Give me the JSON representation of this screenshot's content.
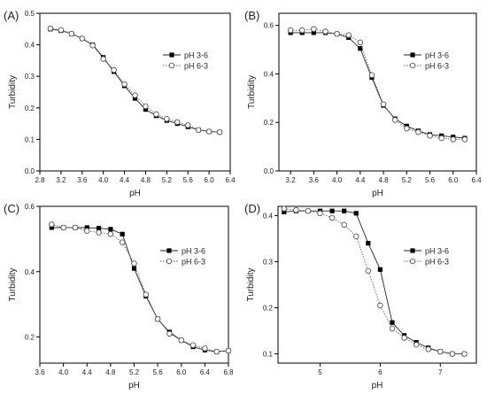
{
  "chart_data": [
    {
      "type": "line",
      "panel_label": "(A)",
      "xlabel": "pH",
      "ylabel": "Turbidity",
      "xlim": [
        2.8,
        6.4
      ],
      "ylim": [
        0.0,
        0.5
      ],
      "xticks": [
        "2.8",
        "3.2",
        "3.6",
        "4.0",
        "4.4",
        "4.8",
        "5.2",
        "5.6",
        "6.0",
        "6.4"
      ],
      "yticks": [
        "0.0",
        "0.1",
        "0.2",
        "0.3",
        "0.4",
        "0.5"
      ],
      "legend_position": "center-right",
      "series": [
        {
          "name": "pH 3-6",
          "marker": "filled-square",
          "line": "solid",
          "x": [
            3.0,
            3.2,
            3.4,
            3.6,
            3.8,
            4.0,
            4.2,
            4.4,
            4.6,
            4.8,
            5.0,
            5.2,
            5.4,
            5.6,
            5.8,
            6.0,
            6.2
          ],
          "y": [
            0.45,
            0.445,
            0.435,
            0.42,
            0.4,
            0.36,
            0.315,
            0.27,
            0.23,
            0.195,
            0.175,
            0.16,
            0.15,
            0.14,
            0.13,
            0.125,
            0.123
          ]
        },
        {
          "name": "pH 6-3",
          "marker": "open-circle",
          "line": "dotted",
          "x": [
            3.0,
            3.2,
            3.4,
            3.6,
            3.8,
            4.0,
            4.2,
            4.4,
            4.6,
            4.8,
            5.0,
            5.2,
            5.4,
            5.6,
            5.8,
            6.0,
            6.2
          ],
          "y": [
            0.452,
            0.447,
            0.435,
            0.42,
            0.398,
            0.355,
            0.32,
            0.275,
            0.24,
            0.205,
            0.18,
            0.165,
            0.155,
            0.145,
            0.13,
            0.125,
            0.123
          ]
        }
      ]
    },
    {
      "type": "line",
      "panel_label": "(B)",
      "xlabel": "pH",
      "ylabel": "Turbidity",
      "xlim": [
        3.0,
        6.4
      ],
      "ylim": [
        0.0,
        0.65
      ],
      "xticks": [
        "3.2",
        "3.6",
        "4.0",
        "4.4",
        "4.8",
        "5.2",
        "5.6",
        "6.0",
        "6.4"
      ],
      "yticks": [
        "0.0",
        "0.2",
        "0.4",
        "0.6"
      ],
      "legend_position": "top-right",
      "series": [
        {
          "name": "pH 3-6",
          "marker": "filled-square",
          "line": "solid",
          "x": [
            3.2,
            3.4,
            3.6,
            3.8,
            4.0,
            4.2,
            4.4,
            4.6,
            4.8,
            5.0,
            5.2,
            5.4,
            5.6,
            5.8,
            6.0,
            6.2
          ],
          "y": [
            0.57,
            0.57,
            0.57,
            0.57,
            0.565,
            0.55,
            0.505,
            0.385,
            0.27,
            0.215,
            0.185,
            0.165,
            0.15,
            0.145,
            0.14,
            0.135
          ]
        },
        {
          "name": "pH 6-3",
          "marker": "open-circle",
          "line": "dotted",
          "x": [
            3.2,
            3.4,
            3.6,
            3.8,
            4.0,
            4.2,
            4.4,
            4.6,
            4.8,
            5.0,
            5.2,
            5.4,
            5.6,
            5.8,
            6.0,
            6.2
          ],
          "y": [
            0.58,
            0.58,
            0.585,
            0.575,
            0.565,
            0.56,
            0.53,
            0.395,
            0.275,
            0.21,
            0.175,
            0.16,
            0.145,
            0.135,
            0.13,
            0.13
          ]
        }
      ]
    },
    {
      "type": "line",
      "panel_label": "(C)",
      "xlabel": "pH",
      "ylabel": "Turbidity",
      "xlim": [
        3.6,
        6.8
      ],
      "ylim": [
        0.12,
        0.6
      ],
      "xticks": [
        "3.6",
        "4.0",
        "4.4",
        "4.8",
        "5.2",
        "5.6",
        "6.0",
        "6.4",
        "6.8"
      ],
      "yticks": [
        "0.2",
        "0.4",
        "0.6"
      ],
      "legend_position": "center-right",
      "series": [
        {
          "name": "pH 3-6",
          "marker": "filled-square",
          "line": "solid",
          "x": [
            3.8,
            4.0,
            4.2,
            4.4,
            4.6,
            4.8,
            5.0,
            5.2,
            5.4,
            5.6,
            5.8,
            6.0,
            6.2,
            6.4,
            6.6,
            6.8
          ],
          "y": [
            0.535,
            0.535,
            0.535,
            0.535,
            0.533,
            0.53,
            0.515,
            0.41,
            0.325,
            0.255,
            0.215,
            0.19,
            0.17,
            0.16,
            0.155,
            0.158
          ]
        },
        {
          "name": "pH 6-3",
          "marker": "open-circle",
          "line": "dotted",
          "x": [
            3.8,
            4.0,
            4.2,
            4.4,
            4.6,
            4.8,
            5.0,
            5.2,
            5.4,
            5.6,
            5.8,
            6.0,
            6.2,
            6.4,
            6.6,
            6.8
          ],
          "y": [
            0.545,
            0.535,
            0.535,
            0.525,
            0.52,
            0.515,
            0.49,
            0.425,
            0.33,
            0.255,
            0.21,
            0.19,
            0.175,
            0.165,
            0.155,
            0.158
          ]
        }
      ]
    },
    {
      "type": "line",
      "panel_label": "(D)",
      "xlabel": "pH",
      "ylabel": "Turbidity",
      "xlim": [
        4.3,
        7.6
      ],
      "ylim": [
        0.08,
        0.42
      ],
      "xticks": [
        "5",
        "6",
        "7"
      ],
      "yticks": [
        "0.1",
        "0.2",
        "0.3",
        "0.4"
      ],
      "legend_position": "center-right",
      "series": [
        {
          "name": "pH 3-6",
          "marker": "filled-square",
          "line": "solid",
          "x": [
            4.4,
            4.6,
            4.8,
            5.0,
            5.2,
            5.4,
            5.6,
            5.8,
            6.0,
            6.2,
            6.4,
            6.6,
            6.8,
            7.0,
            7.2,
            7.4
          ],
          "y": [
            0.408,
            0.41,
            0.41,
            0.41,
            0.41,
            0.41,
            0.405,
            0.34,
            0.283,
            0.168,
            0.14,
            0.125,
            0.113,
            0.105,
            0.1,
            0.1
          ]
        },
        {
          "name": "pH 6-3",
          "marker": "open-circle",
          "line": "dotted",
          "x": [
            4.4,
            4.6,
            4.8,
            5.0,
            5.2,
            5.4,
            5.6,
            5.8,
            6.0,
            6.2,
            6.4,
            6.6,
            6.8,
            7.0,
            7.2,
            7.4
          ],
          "y": [
            0.415,
            0.412,
            0.41,
            0.405,
            0.395,
            0.38,
            0.355,
            0.28,
            0.205,
            0.155,
            0.135,
            0.12,
            0.11,
            0.105,
            0.1,
            0.1
          ]
        }
      ]
    }
  ]
}
